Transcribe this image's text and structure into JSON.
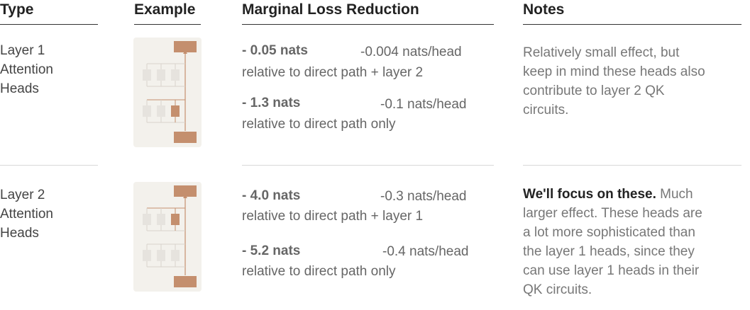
{
  "headers": {
    "type": "Type",
    "example": "Example",
    "marginal": "Marginal Loss Reduction",
    "notes": "Notes"
  },
  "rows": [
    {
      "type_lines": [
        "Layer 1",
        "Attention",
        "Heads"
      ],
      "entries": [
        {
          "value": "- 0.05 nats",
          "per_head": "-0.004 nats/head",
          "relative": "relative to direct path + layer 2"
        },
        {
          "value": "- 1.3 nats",
          "per_head": "-0.1 nats/head",
          "relative": "relative to direct path only"
        }
      ],
      "note_bold": "",
      "note_lines": [
        "Relatively small effect, but",
        "keep in mind these heads also",
        "contribute to layer 2 QK",
        "circuits."
      ],
      "highlighted_layer": 1
    },
    {
      "type_lines": [
        "Layer 2",
        "Attention",
        "Heads"
      ],
      "entries": [
        {
          "value": "- 4.0 nats",
          "per_head": "-0.3 nats/head",
          "relative": "relative to direct path + layer 1"
        },
        {
          "value": "- 5.2 nats",
          "per_head": "-0.4 nats/head",
          "relative": "relative to direct path only"
        }
      ],
      "note_bold": "We'll focus on these.",
      "note_first_rest": " Much",
      "note_lines": [
        "larger effect. These heads are",
        "a lot more sophisticated than",
        "the layer 1 heads, since they",
        "can use layer 1 heads in their",
        "QK circuits."
      ],
      "highlighted_layer": 2
    }
  ],
  "colors": {
    "highlight": "#c48f6e",
    "muted_box": "#e6e3de",
    "line_highlight": "#c48f6e",
    "line_muted": "#d8d4cd"
  }
}
